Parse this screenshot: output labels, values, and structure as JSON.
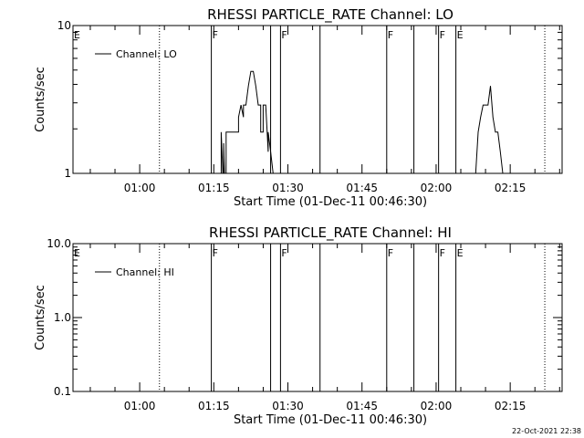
{
  "footer": {
    "timestamp": "22-Oct-2021 22:38"
  },
  "chart_data": [
    {
      "type": "line",
      "title": "RHESSI PARTICLE_RATE Channel: LO",
      "xlabel": "Start Time (01-Dec-11 00:46:30)",
      "ylabel": "Counts/sec",
      "yscale": "log",
      "ylim": [
        1,
        10
      ],
      "ytick_labels": [
        {
          "value": 1,
          "label": "1"
        },
        {
          "value": 10,
          "label": "10"
        }
      ],
      "xlim": [
        "00:46:30",
        "02:25:30"
      ],
      "xtick_labels": [
        "01:00",
        "01:15",
        "01:30",
        "01:45",
        "02:00",
        "02:15"
      ],
      "legend": {
        "entries": [
          "Channel: LO"
        ],
        "position": "top-left"
      },
      "series": [
        {
          "name": "Channel: LO",
          "segments": [
            {
              "x": [
                "01:16:30",
                "01:16:30",
                "01:16:50",
                "01:17:00",
                "01:17:00",
                "01:17:10",
                "01:17:30",
                "01:17:30",
                "01:18:00",
                "01:20:00",
                "01:20:00",
                "01:20:30",
                "01:21:00",
                "01:21:00",
                "01:21:30",
                "01:22:00",
                "01:22:30",
                "01:23:00",
                "01:23:30",
                "01:24:00",
                "01:24:30",
                "01:24:30",
                "01:25:00",
                "01:25:00",
                "01:25:30",
                "01:26:00",
                "01:26:00",
                "01:26:30",
                "01:27:00",
                "01:27:20"
              ],
              "y": [
                1,
                1.9,
                1,
                1,
                1.6,
                1,
                1,
                1.9,
                1.9,
                1.9,
                2.4,
                2.9,
                2.4,
                2.9,
                2.9,
                3.9,
                4.9,
                4.9,
                3.9,
                2.9,
                2.9,
                1.9,
                1.9,
                2.9,
                2.9,
                1.4,
                1.9,
                1.4,
                1,
                1
              ]
            },
            {
              "x": [
                "02:08:00",
                "02:08:30",
                "02:09:00",
                "02:09:30",
                "02:10:00",
                "02:10:30",
                "02:11:00",
                "02:11:30",
                "02:12:00",
                "02:12:30",
                "02:12:30",
                "02:13:00",
                "02:13:30"
              ],
              "y": [
                1,
                1.9,
                2.4,
                2.9,
                2.9,
                2.9,
                3.9,
                2.4,
                1.9,
                1.9,
                1.9,
                1.4,
                1
              ]
            }
          ]
        }
      ],
      "flag_lines": [
        {
          "time": "00:46:30",
          "style": "solid",
          "label": "E"
        },
        {
          "time": "01:04:00",
          "style": "dotted",
          "label": ""
        },
        {
          "time": "01:14:30",
          "style": "solid",
          "label": "F"
        },
        {
          "time": "01:26:30",
          "style": "solid",
          "label": ""
        },
        {
          "time": "01:28:30",
          "style": "solid",
          "label": "F"
        },
        {
          "time": "01:36:30",
          "style": "solid",
          "label": ""
        },
        {
          "time": "01:50:00",
          "style": "solid",
          "label": "F"
        },
        {
          "time": "01:55:30",
          "style": "solid",
          "label": ""
        },
        {
          "time": "02:00:30",
          "style": "solid",
          "label": "F"
        },
        {
          "time": "02:04:00",
          "style": "solid",
          "label": "E"
        },
        {
          "time": "02:22:00",
          "style": "dotted",
          "label": ""
        }
      ]
    },
    {
      "type": "line",
      "title": "RHESSI PARTICLE_RATE Channel: HI",
      "xlabel": "Start Time (01-Dec-11 00:46:30)",
      "ylabel": "Counts/sec",
      "yscale": "log",
      "ylim": [
        0.1,
        10
      ],
      "ytick_labels": [
        {
          "value": 0.1,
          "label": "0.1"
        },
        {
          "value": 1,
          "label": "1.0"
        },
        {
          "value": 10,
          "label": "10.0"
        }
      ],
      "xlim": [
        "00:46:30",
        "02:25:30"
      ],
      "xtick_labels": [
        "01:00",
        "01:15",
        "01:30",
        "01:45",
        "02:00",
        "02:15"
      ],
      "legend": {
        "entries": [
          "Channel: HI"
        ],
        "position": "top-left"
      },
      "series": [
        {
          "name": "Channel: HI",
          "segments": []
        }
      ],
      "flag_lines": [
        {
          "time": "00:46:30",
          "style": "solid",
          "label": "E"
        },
        {
          "time": "01:04:00",
          "style": "dotted",
          "label": ""
        },
        {
          "time": "01:14:30",
          "style": "solid",
          "label": "F"
        },
        {
          "time": "01:26:30",
          "style": "solid",
          "label": ""
        },
        {
          "time": "01:28:30",
          "style": "solid",
          "label": "F"
        },
        {
          "time": "01:36:30",
          "style": "solid",
          "label": ""
        },
        {
          "time": "01:50:00",
          "style": "solid",
          "label": "F"
        },
        {
          "time": "01:55:30",
          "style": "solid",
          "label": ""
        },
        {
          "time": "02:00:30",
          "style": "solid",
          "label": "F"
        },
        {
          "time": "02:04:00",
          "style": "solid",
          "label": "E"
        },
        {
          "time": "02:22:00",
          "style": "dotted",
          "label": ""
        }
      ]
    }
  ]
}
